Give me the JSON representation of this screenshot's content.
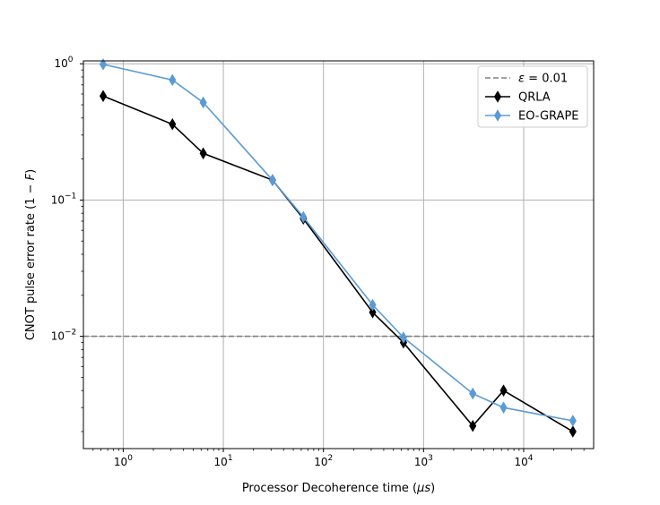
{
  "chart_data": {
    "type": "line",
    "xlabel": "Processor Decoherence time (μs)",
    "ylabel": "CNOT pulse error rate (1 − F)",
    "xscale": "log",
    "yscale": "log",
    "xlim": [
      0.4,
      50000
    ],
    "ylim": [
      0.0015,
      1.05
    ],
    "grid": true,
    "legend_position": "top-right",
    "x_ticks": [
      {
        "value": 1,
        "base": "10",
        "exp": "0"
      },
      {
        "value": 10,
        "base": "10",
        "exp": "1"
      },
      {
        "value": 100,
        "base": "10",
        "exp": "2"
      },
      {
        "value": 1000,
        "base": "10",
        "exp": "3"
      },
      {
        "value": 10000,
        "base": "10",
        "exp": "4"
      }
    ],
    "y_ticks": [
      {
        "value": 0.01,
        "base": "10",
        "exp": "−2"
      },
      {
        "value": 0.1,
        "base": "10",
        "exp": "−1"
      },
      {
        "value": 1,
        "base": "10",
        "exp": "0"
      }
    ],
    "reference_line": {
      "name": "ε = 0.01",
      "y": 0.01,
      "color": "#808080",
      "style": "dashed"
    },
    "series": [
      {
        "name": "QRLA",
        "color": "#000000",
        "marker": "thin_diamond",
        "x": [
          0.63,
          3.1,
          6.3,
          31,
          63,
          310,
          630,
          3100,
          6300,
          31000
        ],
        "y": [
          0.58,
          0.36,
          0.22,
          0.14,
          0.073,
          0.015,
          0.009,
          0.0022,
          0.004,
          0.002
        ]
      },
      {
        "name": "EO-GRAPE",
        "color": "#5b9bd5",
        "marker": "thin_diamond",
        "x": [
          0.63,
          3.1,
          6.3,
          31,
          63,
          310,
          630,
          3100,
          6300,
          31000
        ],
        "y": [
          0.99,
          0.76,
          0.52,
          0.14,
          0.075,
          0.017,
          0.0098,
          0.0038,
          0.003,
          0.0024
        ]
      }
    ]
  }
}
